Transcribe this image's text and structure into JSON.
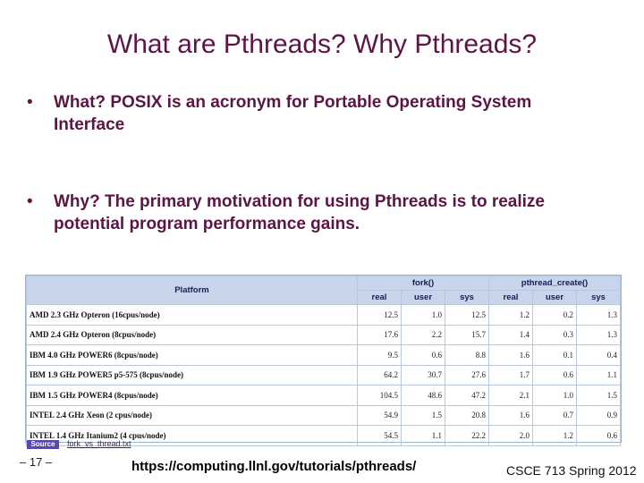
{
  "title": "What are Pthreads? Why Pthreads?",
  "bullets": [
    {
      "marker": "•",
      "text": "What? POSIX is an acronym for Portable Operating System Interface"
    },
    {
      "marker": "•",
      "text": "Why? The primary motivation for using Pthreads is to realize potential program performance gains."
    }
  ],
  "table": {
    "platform_header": "Platform",
    "group_headers": [
      "fork()",
      "pthread_create()"
    ],
    "sub_headers": [
      "real",
      "user",
      "sys",
      "real",
      "user",
      "sys"
    ],
    "rows": [
      {
        "platform": "AMD 2.3 GHz Opteron (16cpus/node)",
        "values": [
          "12.5",
          "1.0",
          "12.5",
          "1.2",
          "0.2",
          "1.3"
        ]
      },
      {
        "platform": "AMD 2.4 GHz Opteron (8cpus/node)",
        "values": [
          "17.6",
          "2.2",
          "15.7",
          "1.4",
          "0.3",
          "1.3"
        ]
      },
      {
        "platform": "IBM 4.0 GHz POWER6 (8cpus/node)",
        "values": [
          "9.5",
          "0.6",
          "8.8",
          "1.6",
          "0.1",
          "0.4"
        ]
      },
      {
        "platform": "IBM 1.9 GHz POWER5 p5-575 (8cpus/node)",
        "values": [
          "64.2",
          "30.7",
          "27.6",
          "1.7",
          "0.6",
          "1.1"
        ]
      },
      {
        "platform": "IBM 1.5 GHz POWER4 (8cpus/node)",
        "values": [
          "104.5",
          "48.6",
          "47.2",
          "2.1",
          "1.0",
          "1.5"
        ]
      },
      {
        "platform": "INTEL 2.4 GHz Xeon (2 cpus/node)",
        "values": [
          "54.9",
          "1.5",
          "20.8",
          "1.6",
          "0.7",
          "0.9"
        ]
      },
      {
        "platform": "INTEL 1.4 GHz Itanium2 (4 cpus/node)",
        "values": [
          "54.5",
          "1.1",
          "22.2",
          "2.0",
          "1.2",
          "0.6"
        ]
      }
    ]
  },
  "source_label": "Source",
  "source_link": "fork_vs_thread.txt",
  "page_number": "– 17 –",
  "url": "https://computing.llnl.gov/tutorials/pthreads/",
  "course": "CSCE 713 Spring 2012",
  "colors": {
    "title": "#5c1545",
    "table_header": "#c8d4ea",
    "source_badge": "#5a47b7"
  }
}
